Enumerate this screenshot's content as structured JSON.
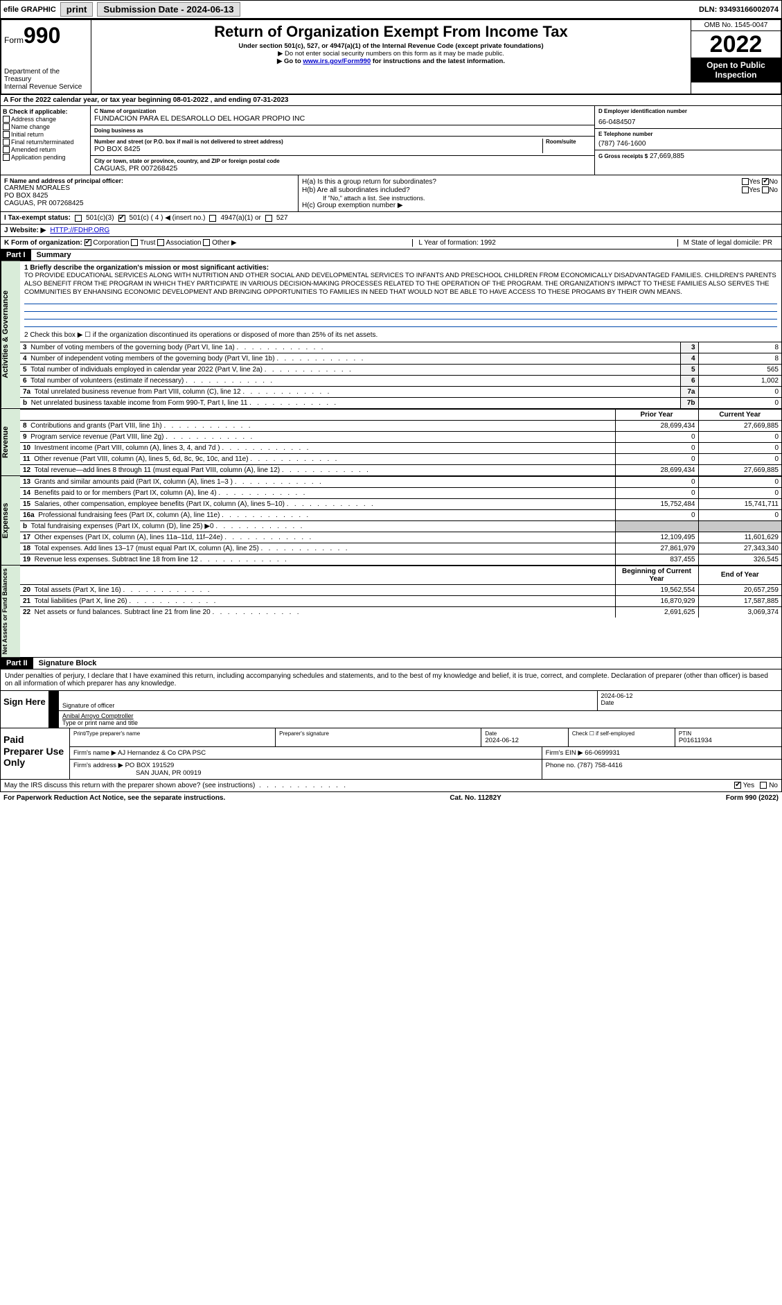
{
  "top": {
    "efile": "efile GRAPHIC",
    "print": "print",
    "sub_label": "Submission Date - 2024-06-13",
    "dln": "DLN: 93493166002074"
  },
  "header": {
    "form_word": "Form",
    "form_no": "990",
    "dept": "Department of the Treasury",
    "irs": "Internal Revenue Service",
    "title": "Return of Organization Exempt From Income Tax",
    "sub1": "Under section 501(c), 527, or 4947(a)(1) of the Internal Revenue Code (except private foundations)",
    "sub2": "▶ Do not enter social security numbers on this form as it may be made public.",
    "sub3_pre": "▶ Go to ",
    "sub3_link": "www.irs.gov/Form990",
    "sub3_post": " for instructions and the latest information.",
    "omb": "OMB No. 1545-0047",
    "year": "2022",
    "inspect": "Open to Public Inspection"
  },
  "rowA": "A    For the 2022 calendar year, or tax year beginning 08-01-2022   , and ending 07-31-2023",
  "colB": {
    "hdr": "B Check if applicable:",
    "items": [
      "Address change",
      "Name change",
      "Initial return",
      "Final return/terminated",
      "Amended return",
      "Application pending"
    ]
  },
  "C": {
    "name_lbl": "C Name of organization",
    "name": "FUNDACION PARA EL DESAROLLO DEL HOGAR PROPIO INC",
    "dba_lbl": "Doing business as",
    "dba": "",
    "street_lbl": "Number and street (or P.O. box if mail is not delivered to street address)",
    "room_lbl": "Room/suite",
    "street": "PO BOX 8425",
    "city_lbl": "City or town, state or province, country, and ZIP or foreign postal code",
    "city": "CAGUAS, PR  007268425"
  },
  "D": {
    "lbl": "D Employer identification number",
    "val": "66-0484507"
  },
  "E": {
    "lbl": "E Telephone number",
    "val": "(787) 746-1600"
  },
  "G": {
    "lbl": "G Gross receipts $",
    "val": "27,669,885"
  },
  "F": {
    "lbl": "F  Name and address of principal officer:",
    "name": "CARMEN MORALES",
    "addr1": "PO BOX 8425",
    "addr2": "CAGUAS, PR  007268425"
  },
  "H": {
    "a": "H(a)  Is this a group return for subordinates?",
    "a_yes": "Yes",
    "a_no": "No",
    "b": "H(b)  Are all subordinates included?",
    "b_yes": "Yes",
    "b_no": "No",
    "b_note": "If \"No,\" attach a list. See instructions.",
    "c": "H(c)  Group exemption number ▶"
  },
  "I": {
    "lbl": "I    Tax-exempt status:",
    "o1": "501(c)(3)",
    "o2": "501(c) ( 4 ) ◀ (insert no.)",
    "o3": "4947(a)(1) or",
    "o4": "527"
  },
  "J": {
    "lbl": "J   Website: ▶",
    "val": "HTTP://FDHP.ORG"
  },
  "K": {
    "lbl": "K Form of organization:",
    "o1": "Corporation",
    "o2": "Trust",
    "o3": "Association",
    "o4": "Other ▶",
    "L": "L Year of formation: 1992",
    "M": "M State of legal domicile: PR"
  },
  "part1": {
    "hdr": "Part I",
    "title": "Summary",
    "side_ag": "Activities & Governance",
    "side_rev": "Revenue",
    "side_exp": "Expenses",
    "side_na": "Net Assets or Fund Balances",
    "q1": "1   Briefly describe the organization's mission or most significant activities:",
    "mission": "TO PROVIDE EDUCATIONAL SERVICES ALONG WITH NUTRITION AND OTHER SOCIAL AND DEVELOPMENTAL SERVICES TO INFANTS AND PRESCHOOL CHILDREN FROM ECONOMICALLY DISADVANTAGED FAMILIES. CHILDREN'S PARENTS ALSO BENEFIT FROM THE PROGRAM IN WHICH THEY PARTICIPATE IN VARIOUS DECISION-MAKING PROCESSES RELATED TO THE OPERATION OF THE PROGRAM. THE ORGANIZATION'S IMPACT TO THESE FAMILIES ALSO SERVES THE COMMUNITIES BY ENHANSING ECONOMIC DEVELOPMENT AND BRINGING OPPORTUNITIES TO FAMILIES IN NEED THAT WOULD NOT BE ABLE TO HAVE ACCESS TO THESE PROGAMS BY THEIR OWN MEANS.",
    "q2": "2   Check this box ▶ ☐ if the organization discontinued its operations or disposed of more than 25% of its net assets.",
    "rows_ag": [
      {
        "n": "3",
        "lbl": "Number of voting members of the governing body (Part VI, line 1a)",
        "box": "3",
        "v": "8"
      },
      {
        "n": "4",
        "lbl": "Number of independent voting members of the governing body (Part VI, line 1b)",
        "box": "4",
        "v": "8"
      },
      {
        "n": "5",
        "lbl": "Total number of individuals employed in calendar year 2022 (Part V, line 2a)",
        "box": "5",
        "v": "565"
      },
      {
        "n": "6",
        "lbl": "Total number of volunteers (estimate if necessary)",
        "box": "6",
        "v": "1,002"
      },
      {
        "n": "7a",
        "lbl": "Total unrelated business revenue from Part VIII, column (C), line 12",
        "box": "7a",
        "v": "0"
      },
      {
        "n": "b",
        "lbl": "Net unrelated business taxable income from Form 990-T, Part I, line 11",
        "box": "7b",
        "v": "0"
      }
    ],
    "col_prior": "Prior Year",
    "col_curr": "Current Year",
    "rows_rev": [
      {
        "n": "8",
        "lbl": "Contributions and grants (Part VIII, line 1h)",
        "p": "28,699,434",
        "c": "27,669,885"
      },
      {
        "n": "9",
        "lbl": "Program service revenue (Part VIII, line 2g)",
        "p": "0",
        "c": "0"
      },
      {
        "n": "10",
        "lbl": "Investment income (Part VIII, column (A), lines 3, 4, and 7d )",
        "p": "0",
        "c": "0"
      },
      {
        "n": "11",
        "lbl": "Other revenue (Part VIII, column (A), lines 5, 6d, 8c, 9c, 10c, and 11e)",
        "p": "0",
        "c": "0"
      },
      {
        "n": "12",
        "lbl": "Total revenue—add lines 8 through 11 (must equal Part VIII, column (A), line 12)",
        "p": "28,699,434",
        "c": "27,669,885"
      }
    ],
    "rows_exp": [
      {
        "n": "13",
        "lbl": "Grants and similar amounts paid (Part IX, column (A), lines 1–3 )",
        "p": "0",
        "c": "0"
      },
      {
        "n": "14",
        "lbl": "Benefits paid to or for members (Part IX, column (A), line 4)",
        "p": "0",
        "c": "0"
      },
      {
        "n": "15",
        "lbl": "Salaries, other compensation, employee benefits (Part IX, column (A), lines 5–10)",
        "p": "15,752,484",
        "c": "15,741,711"
      },
      {
        "n": "16a",
        "lbl": "Professional fundraising fees (Part IX, column (A), line 11e)",
        "p": "0",
        "c": "0"
      },
      {
        "n": "b",
        "lbl": "Total fundraising expenses (Part IX, column (D), line 25) ▶0",
        "p": "",
        "c": "",
        "shade": true
      },
      {
        "n": "17",
        "lbl": "Other expenses (Part IX, column (A), lines 11a–11d, 11f–24e)",
        "p": "12,109,495",
        "c": "11,601,629"
      },
      {
        "n": "18",
        "lbl": "Total expenses. Add lines 13–17 (must equal Part IX, column (A), line 25)",
        "p": "27,861,979",
        "c": "27,343,340"
      },
      {
        "n": "19",
        "lbl": "Revenue less expenses. Subtract line 18 from line 12",
        "p": "837,455",
        "c": "326,545"
      }
    ],
    "col_beg": "Beginning of Current Year",
    "col_end": "End of Year",
    "rows_na": [
      {
        "n": "20",
        "lbl": "Total assets (Part X, line 16)",
        "p": "19,562,554",
        "c": "20,657,259"
      },
      {
        "n": "21",
        "lbl": "Total liabilities (Part X, line 26)",
        "p": "16,870,929",
        "c": "17,587,885"
      },
      {
        "n": "22",
        "lbl": "Net assets or fund balances. Subtract line 21 from line 20",
        "p": "2,691,625",
        "c": "3,069,374"
      }
    ]
  },
  "part2": {
    "hdr": "Part II",
    "title": "Signature Block",
    "decl": "Under penalties of perjury, I declare that I have examined this return, including accompanying schedules and statements, and to the best of my knowledge and belief, it is true, correct, and complete. Declaration of preparer (other than officer) is based on all information of which preparer has any knowledge."
  },
  "sign": {
    "here": "Sign Here",
    "sig_lbl": "Signature of officer",
    "date_lbl": "Date",
    "date": "2024-06-12",
    "name": "Anibal Arroyo  Comptroller",
    "name_lbl": "Type or print name and title"
  },
  "paid": {
    "hdr": "Paid Preparer Use Only",
    "r1c1_lbl": "Print/Type preparer's name",
    "r1c1": "",
    "r1c2_lbl": "Preparer's signature",
    "r1c2": "",
    "r1c3_lbl": "Date",
    "r1c3": "2024-06-12",
    "r1c4_lbl": "Check ☐ if self-employed",
    "r1c5_lbl": "PTIN",
    "r1c5": "P01611934",
    "r2_lbl": "Firm's name    ▶",
    "r2": "AJ Hernandez & Co CPA PSC",
    "r2b_lbl": "Firm's EIN ▶",
    "r2b": "66-0699931",
    "r3_lbl": "Firm's address ▶",
    "r3a": "PO BOX 191529",
    "r3b": "SAN JUAN, PR  00919",
    "r3c_lbl": "Phone no.",
    "r3c": "(787) 758-4416"
  },
  "footer": {
    "q": "May the IRS discuss this return with the preparer shown above? (see instructions)",
    "yes": "Yes",
    "no": "No",
    "pra": "For Paperwork Reduction Act Notice, see the separate instructions.",
    "cat": "Cat. No. 11282Y",
    "form": "Form 990 (2022)"
  }
}
